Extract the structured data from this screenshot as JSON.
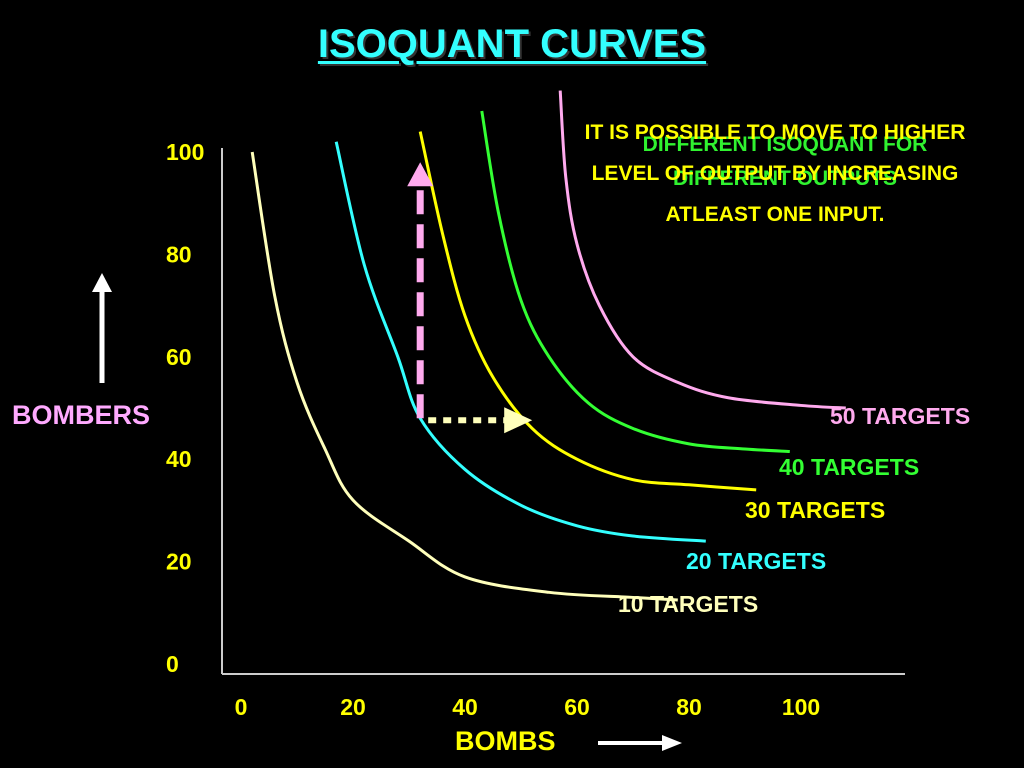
{
  "slide": {
    "title": "ISOQUANT CURVES",
    "note_green": "DIFFERENT ISOQUANT FOR DIFFERENT OUTPUTS",
    "note_yellow": "IT IS POSSIBLE TO MOVE TO HIGHER LEVEL OF OUTPUT BY INCREASING ATLEAST ONE INPUT."
  },
  "chart_data": {
    "type": "line",
    "xlabel": "BOMBS",
    "ylabel": "BOMBERS",
    "xlim": [
      0,
      120
    ],
    "ylim": [
      0,
      100
    ],
    "xticks": [
      0,
      20,
      40,
      60,
      80,
      100
    ],
    "yticks": [
      0,
      20,
      40,
      60,
      80,
      100
    ],
    "series": [
      {
        "name": "10 TARGETS",
        "color": "#ffffbb",
        "x": [
          2,
          6,
          10,
          15,
          20,
          30,
          40,
          55,
          70,
          78
        ],
        "y": [
          100,
          72,
          55,
          42,
          32,
          24,
          17,
          14,
          13,
          12.5
        ]
      },
      {
        "name": "20 TARGETS",
        "color": "#33ffff",
        "x": [
          17,
          22,
          28,
          32,
          40,
          50,
          60,
          70,
          83
        ],
        "y": [
          102,
          78,
          60,
          48,
          38,
          31,
          27,
          25,
          24
        ]
      },
      {
        "name": "30 TARGETS",
        "color": "#ffff00",
        "x": [
          32,
          36,
          40,
          45,
          52,
          60,
          70,
          80,
          92
        ],
        "y": [
          104,
          84,
          68,
          56,
          46,
          40,
          36,
          35,
          34
        ]
      },
      {
        "name": "40 TARGETS",
        "color": "#33ff33",
        "x": [
          43,
          46,
          50,
          55,
          62,
          70,
          80,
          90,
          98
        ],
        "y": [
          108,
          88,
          71,
          60,
          51,
          46,
          43,
          42,
          41.5
        ]
      },
      {
        "name": "50 TARGETS",
        "color": "#ffaaee",
        "x": [
          57,
          58,
          60,
          64,
          70,
          78,
          87,
          100,
          108
        ],
        "y": [
          112,
          95,
          82,
          70,
          60,
          55,
          52,
          50.5,
          50
        ]
      }
    ],
    "movement": {
      "vertical": {
        "x": 32,
        "from": 48,
        "to": 98
      },
      "horizontal": {
        "y": 48,
        "from": 32,
        "to": 52
      }
    },
    "arrow_colors": {
      "vertical": "#ffaaee",
      "horizontal": "#ffffbb",
      "axis": "#ffffff"
    }
  }
}
